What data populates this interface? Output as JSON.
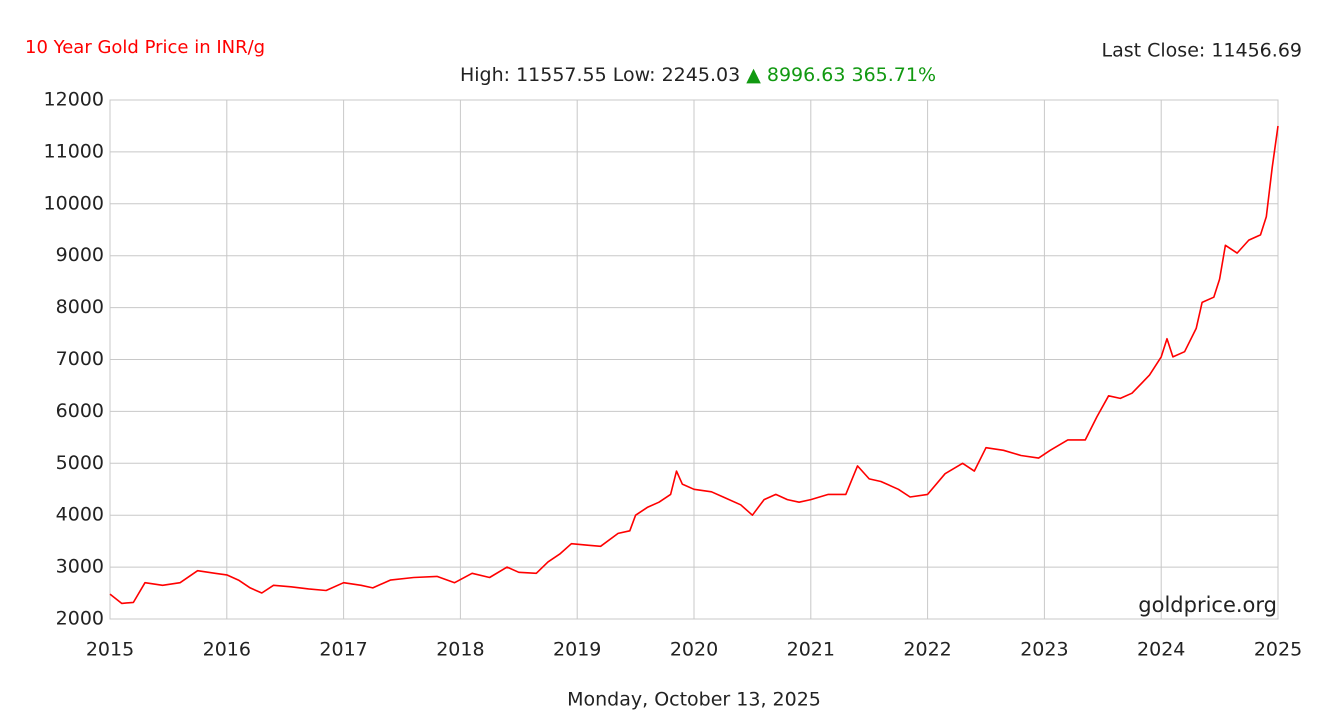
{
  "chart_data": {
    "type": "line",
    "title": "10 Year Gold Price in INR/g",
    "subtitle": "High: 11557.55 Low: 2245.03",
    "change": "▲ 8996.63 365.71%",
    "last_close": "Last Close: 11456.69",
    "source": "goldprice.org",
    "date": "Monday, October 13, 2025",
    "color": "#ff0000",
    "grid": true,
    "xlim": [
      2015,
      2025
    ],
    "xticks": [
      2015,
      2016,
      2017,
      2018,
      2019,
      2020,
      2021,
      2022,
      2023,
      2024,
      2025
    ],
    "ylim": [
      2000,
      12000
    ],
    "yticks": [
      2000,
      3000,
      4000,
      5000,
      6000,
      7000,
      8000,
      9000,
      10000,
      11000,
      12000
    ],
    "x": [
      2015.0,
      2015.1,
      2015.2,
      2015.3,
      2015.45,
      2015.6,
      2015.75,
      2015.9,
      2016.0,
      2016.1,
      2016.2,
      2016.3,
      2016.4,
      2016.55,
      2016.7,
      2016.85,
      2017.0,
      2017.15,
      2017.25,
      2017.4,
      2017.6,
      2017.8,
      2017.95,
      2018.1,
      2018.25,
      2018.4,
      2018.5,
      2018.65,
      2018.75,
      2018.85,
      2018.95,
      2019.1,
      2019.2,
      2019.35,
      2019.45,
      2019.5,
      2019.6,
      2019.7,
      2019.8,
      2019.85,
      2019.9,
      2020.0,
      2020.15,
      2020.25,
      2020.4,
      2020.5,
      2020.6,
      2020.7,
      2020.8,
      2020.9,
      2021.0,
      2021.15,
      2021.3,
      2021.4,
      2021.5,
      2021.6,
      2021.75,
      2021.85,
      2022.0,
      2022.15,
      2022.3,
      2022.4,
      2022.5,
      2022.65,
      2022.8,
      2022.95,
      2023.05,
      2023.2,
      2023.35,
      2023.45,
      2023.55,
      2023.65,
      2023.75,
      2023.9,
      2024.0,
      2024.05,
      2024.1,
      2024.2,
      2024.3,
      2024.35,
      2024.45,
      2024.5,
      2024.55,
      2024.65,
      2024.75,
      2024.85,
      2024.9,
      2024.95,
      2025.0
    ],
    "values": [
      2480,
      2300,
      2320,
      2700,
      2650,
      2700,
      2930,
      2880,
      2850,
      2750,
      2600,
      2500,
      2650,
      2620,
      2580,
      2550,
      2700,
      2650,
      2600,
      2750,
      2800,
      2820,
      2700,
      2880,
      2800,
      3000,
      2900,
      2880,
      3100,
      3250,
      3450,
      3420,
      3400,
      3650,
      3700,
      4000,
      4150,
      4250,
      4400,
      4850,
      4600,
      4500,
      4450,
      4350,
      4200,
      4000,
      4300,
      4400,
      4300,
      4250,
      4300,
      4400,
      4400,
      4950,
      4700,
      4650,
      4500,
      4350,
      4400,
      4800,
      5000,
      4850,
      5300,
      5250,
      5150,
      5100,
      5250,
      5450,
      5450,
      5900,
      6300,
      6250,
      6350,
      6700,
      7050,
      7400,
      7050,
      7150,
      7600,
      8100,
      8200,
      8550,
      9200,
      9050,
      9300,
      9400,
      9750,
      10700,
      11500
    ]
  }
}
